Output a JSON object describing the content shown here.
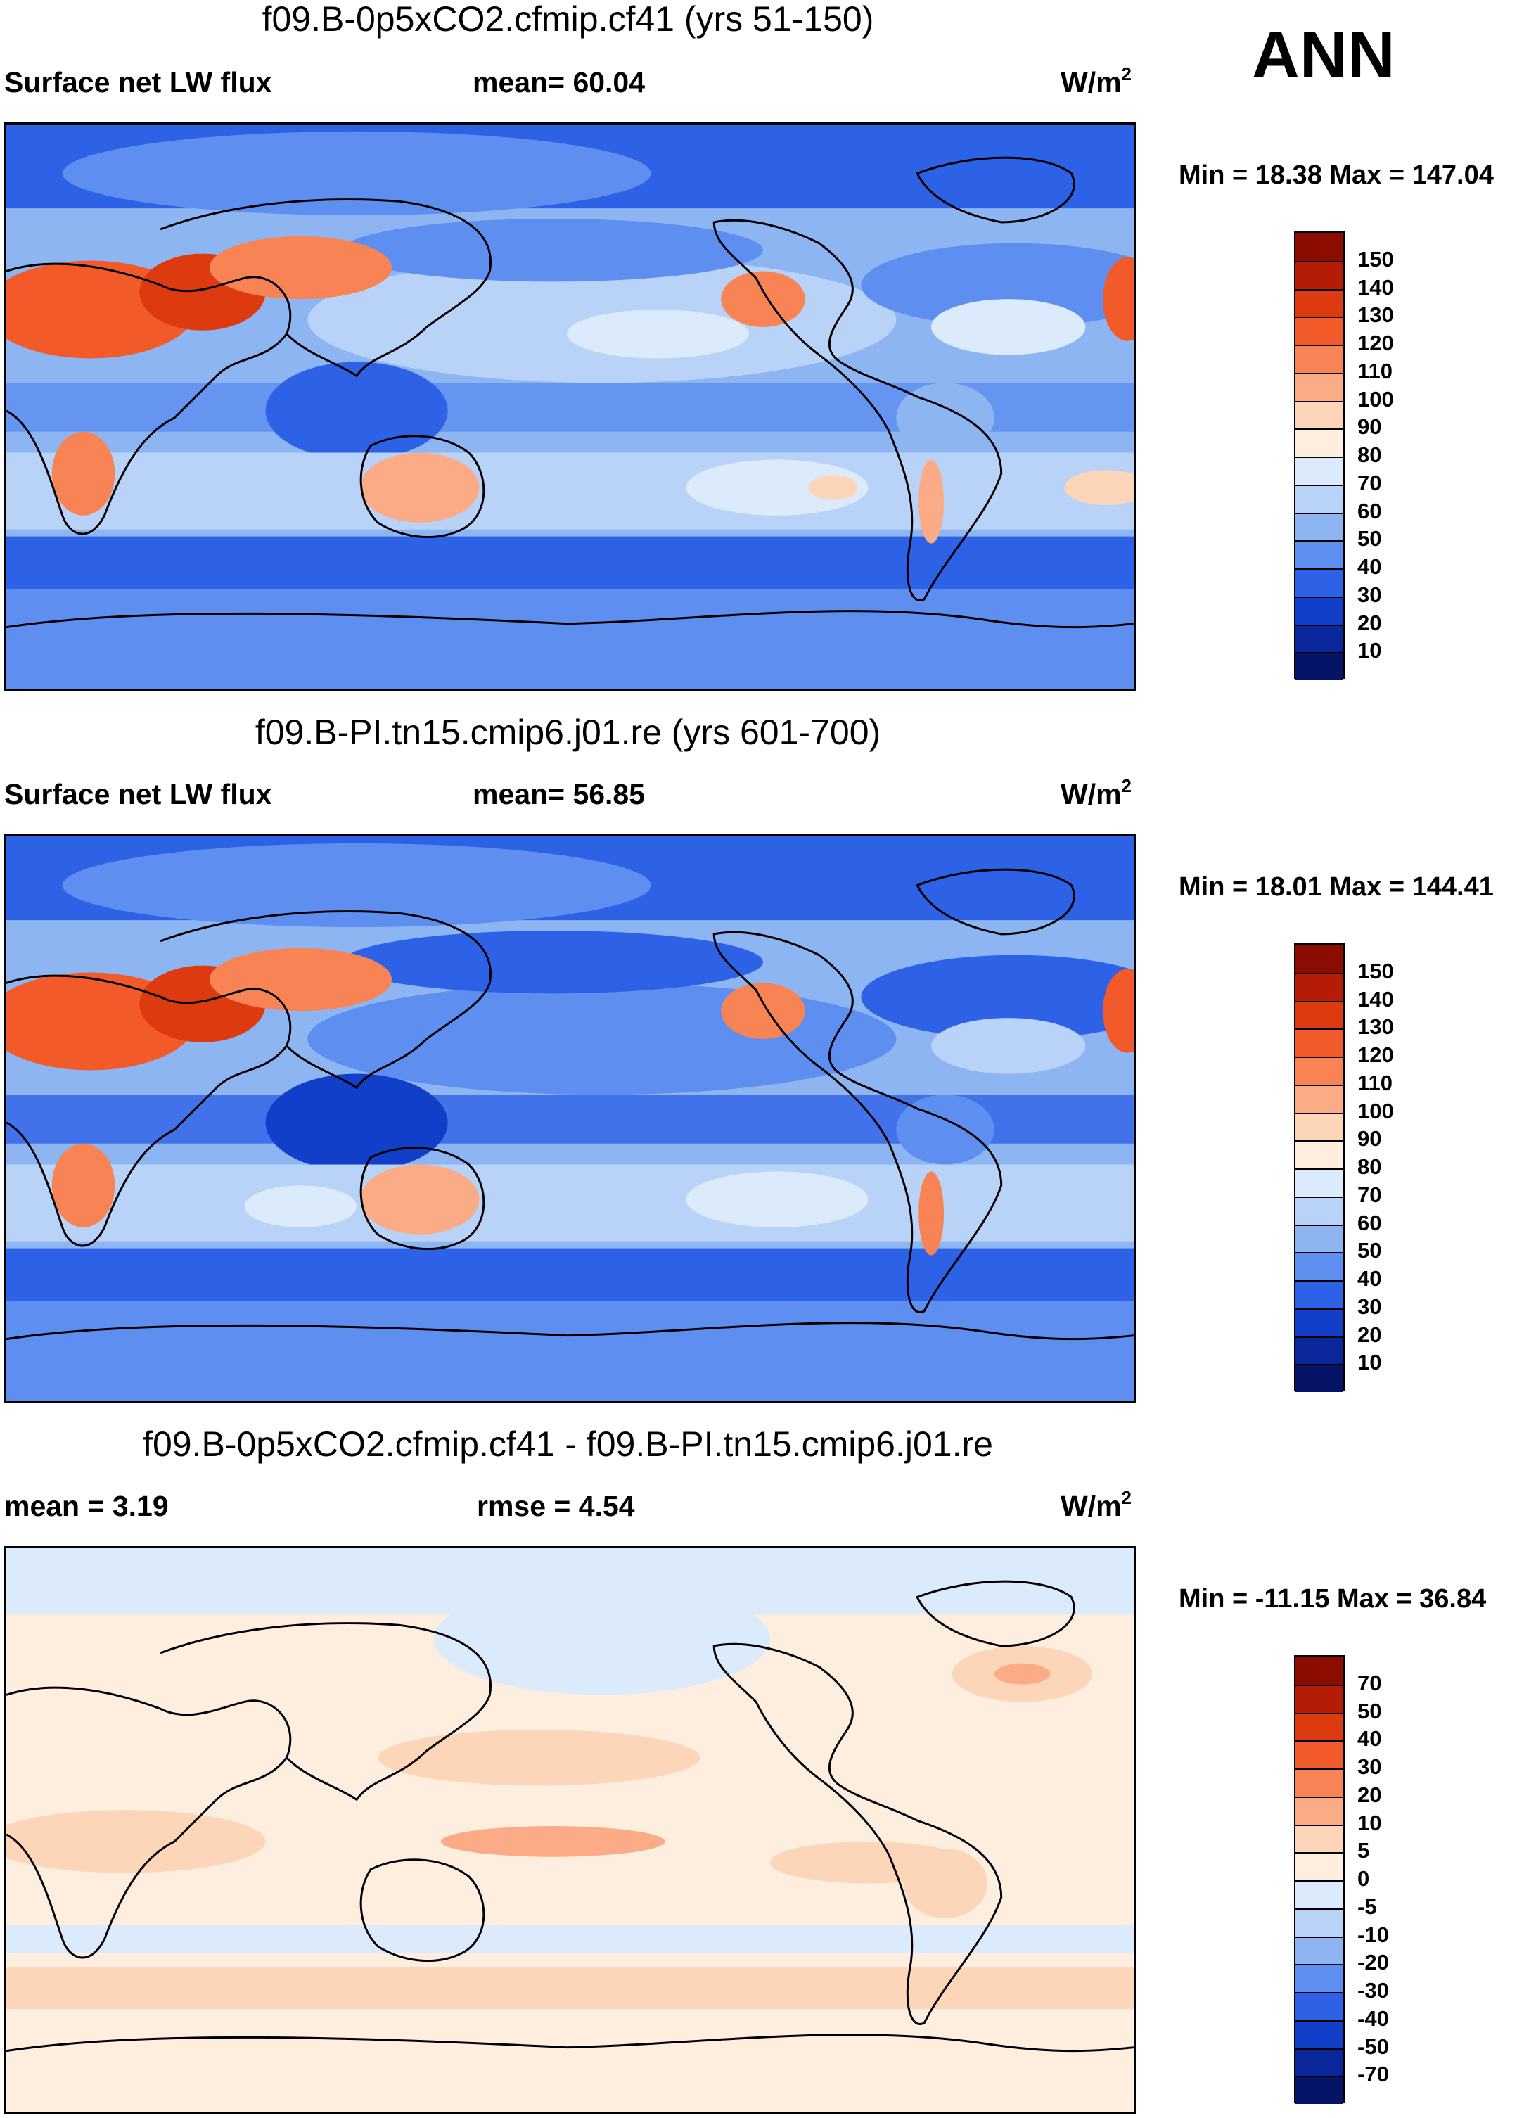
{
  "season": "ANN",
  "panels": [
    {
      "title": "f09.B-0p5xCO2.cfmip.cf41 (yrs 51-150)",
      "left_label": "Surface net LW flux",
      "stat_text": "mean=  60.04",
      "units_base": "W/m",
      "units_sup": "2",
      "minmax": "Min =  18.38 Max = 147.04",
      "map_theme": "absolute"
    },
    {
      "title": "f09.B-PI.tn15.cmip6.j01.re (yrs 601-700)",
      "left_label": "Surface net LW flux",
      "stat_text": "mean=  56.85",
      "units_base": "W/m",
      "units_sup": "2",
      "minmax": "Min =  18.01 Max = 144.41",
      "map_theme": "absolute"
    },
    {
      "title": "f09.B-0p5xCO2.cfmip.cf41 - f09.B-PI.tn15.cmip6.j01.re",
      "left_label": "mean =   3.19",
      "stat_text": "rmse =   4.54",
      "units_base": "W/m",
      "units_sup": "2",
      "minmax": "Min = -11.15 Max =  36.84",
      "map_theme": "difference"
    }
  ],
  "colorbars": [
    {
      "ticks": [
        "150",
        "140",
        "130",
        "120",
        "110",
        "100",
        "90",
        "80",
        "70",
        "60",
        "50",
        "40",
        "30",
        "20",
        "10"
      ],
      "colors": [
        "#8c0c00",
        "#b51c05",
        "#dd3a10",
        "#f25a2a",
        "#f88455",
        "#fbab86",
        "#fdd5b8",
        "#fdeee0",
        "#dcebfb",
        "#b8d3f7",
        "#8db5f2",
        "#5e8ff0",
        "#2e62e6",
        "#123fca",
        "#0a279b",
        "#061467"
      ]
    },
    {
      "ticks": [
        "150",
        "140",
        "130",
        "120",
        "110",
        "100",
        "90",
        "80",
        "70",
        "60",
        "50",
        "40",
        "30",
        "20",
        "10"
      ],
      "colors": [
        "#8c0c00",
        "#b51c05",
        "#dd3a10",
        "#f25a2a",
        "#f88455",
        "#fbab86",
        "#fdd5b8",
        "#fdeee0",
        "#dcebfb",
        "#b8d3f7",
        "#8db5f2",
        "#5e8ff0",
        "#2e62e6",
        "#123fca",
        "#0a279b",
        "#061467"
      ]
    },
    {
      "ticks": [
        "70",
        "50",
        "40",
        "30",
        "20",
        "10",
        "5",
        "0",
        "-5",
        "-10",
        "-20",
        "-30",
        "-40",
        "-50",
        "-70"
      ],
      "colors": [
        "#8c0c00",
        "#b51c05",
        "#dd3a10",
        "#f25a2a",
        "#f88455",
        "#fbab86",
        "#fdd5b8",
        "#fdeee0",
        "#dcebfb",
        "#b8d3f7",
        "#8db5f2",
        "#5e8ff0",
        "#2e62e6",
        "#123fca",
        "#0a279b",
        "#061467"
      ]
    }
  ]
}
